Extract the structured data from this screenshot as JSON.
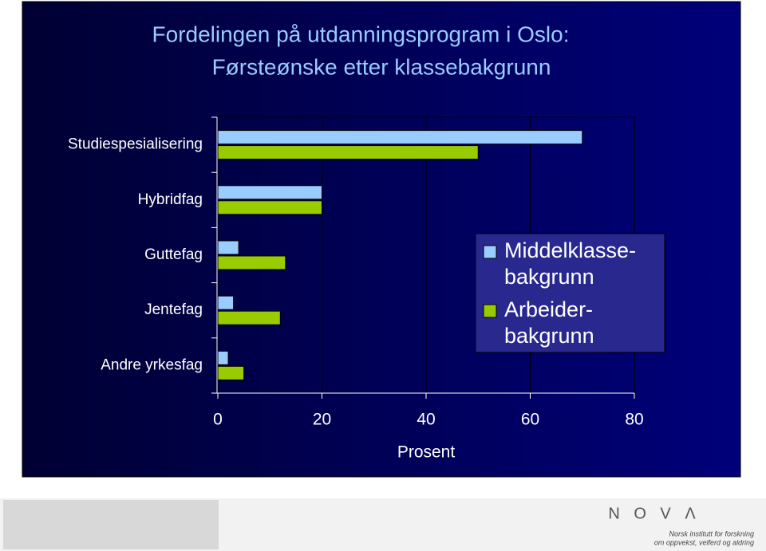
{
  "chart_data": {
    "type": "hbar",
    "title": "Fordelingen på utdanningsprogram i Oslo:",
    "subtitle": "Førsteønske etter klassebakgrunn",
    "categories": [
      "Studiespesialisering",
      "Hybridfag",
      "Guttefag",
      "Jentefag",
      "Andre yrkesfag"
    ],
    "series": [
      {
        "name": "Middelklasse-bakgrunn",
        "color": "#99ccff",
        "values": [
          70,
          20,
          4,
          3,
          2
        ]
      },
      {
        "name": "Arbeider-bakgrunn",
        "color": "#99cc00",
        "values": [
          50,
          20,
          13,
          12,
          5
        ]
      }
    ],
    "xlim": [
      0,
      80
    ],
    "xticks": [
      0,
      20,
      40,
      60,
      80
    ],
    "xlabel": "Prosent",
    "grid": true
  },
  "footer": {
    "logo": "N O V Λ",
    "tagline": [
      "Norsk institutt for forskning",
      "om oppvekst, velferd og aldring"
    ]
  }
}
